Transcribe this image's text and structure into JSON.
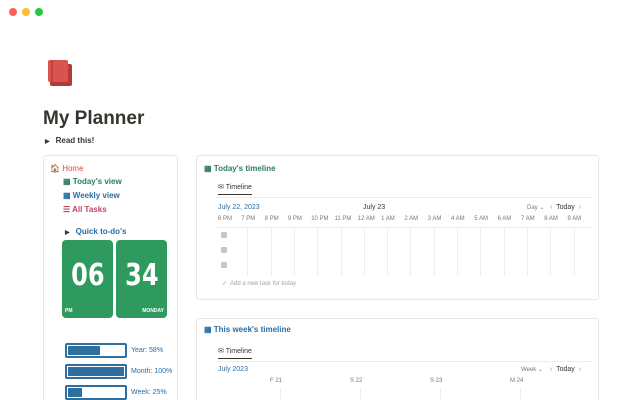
{
  "page": {
    "title": "My Planner",
    "toggle": "Read this!"
  },
  "sidebar": {
    "links": [
      "Home",
      "Today's view",
      "Weekly view",
      "All Tasks"
    ],
    "quick": "Quick to-do's",
    "clock": {
      "hour": "06",
      "minute": "34",
      "period": "PM",
      "day": "MONDAY"
    },
    "progress": [
      {
        "label": "Year: 58%",
        "value": 58
      },
      {
        "label": "Month: 100%",
        "value": 100
      },
      {
        "label": "Week: 25%",
        "value": 25
      }
    ]
  },
  "today": {
    "title": "Today's timeline",
    "tab": "Timeline",
    "date": "July 22, 2023",
    "next_date": "July 23",
    "scale": "Day",
    "today": "Today",
    "hours": [
      "6 PM",
      "7 PM",
      "8 PM",
      "9 PM",
      "10 PM",
      "11 PM",
      "12 AM",
      "1 AM",
      "2 AM",
      "3 AM",
      "4 AM",
      "5 AM",
      "6 AM",
      "7 AM",
      "8 AM",
      "9 AM"
    ],
    "add": "Add a new task for today"
  },
  "week": {
    "title": "This week's timeline",
    "tab": "Timeline",
    "date": "July 2023",
    "scale": "Week",
    "today": "Today",
    "days": [
      "F 21",
      "S 22",
      "S 23",
      "M 24"
    ]
  }
}
